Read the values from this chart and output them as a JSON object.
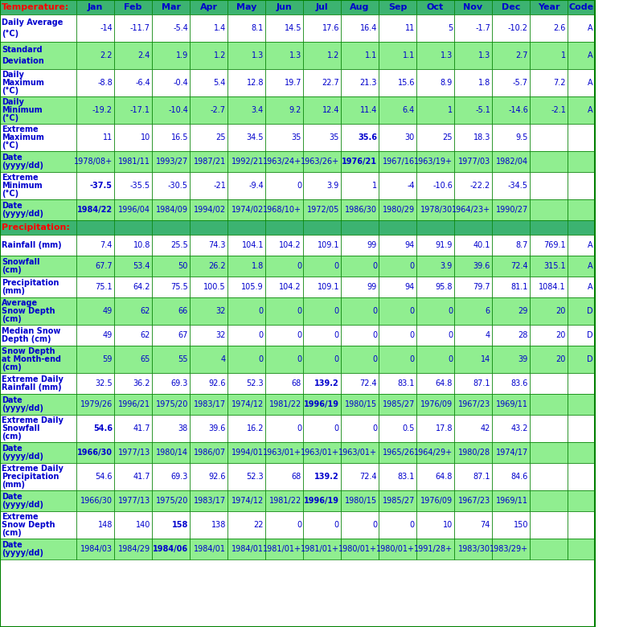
{
  "header_row": [
    "Temperature:",
    "Jan",
    "Feb",
    "Mar",
    "Apr",
    "May",
    "Jun",
    "Jul",
    "Aug",
    "Sep",
    "Oct",
    "Nov",
    "Dec",
    "Year",
    "Code"
  ],
  "rows": [
    {
      "label": "Daily Average\n(°C)",
      "values": [
        "-14",
        "-11.7",
        "-5.4",
        "1.4",
        "8.1",
        "14.5",
        "17.6",
        "16.4",
        "11",
        "5",
        "-1.7",
        "-10.2",
        "2.6",
        "A"
      ],
      "bold_cells": [],
      "row_bg": "white"
    },
    {
      "label": "Standard\nDeviation",
      "values": [
        "2.2",
        "2.4",
        "1.9",
        "1.2",
        "1.3",
        "1.3",
        "1.2",
        "1.1",
        "1.1",
        "1.3",
        "1.3",
        "2.7",
        "1",
        "A"
      ],
      "bold_cells": [],
      "row_bg": "light_green"
    },
    {
      "label": "Daily\nMaximum\n(°C)",
      "values": [
        "-8.8",
        "-6.4",
        "-0.4",
        "5.4",
        "12.8",
        "19.7",
        "22.7",
        "21.3",
        "15.6",
        "8.9",
        "1.8",
        "-5.7",
        "7.2",
        "A"
      ],
      "bold_cells": [],
      "row_bg": "white"
    },
    {
      "label": "Daily\nMinimum\n(°C)",
      "values": [
        "-19.2",
        "-17.1",
        "-10.4",
        "-2.7",
        "3.4",
        "9.2",
        "12.4",
        "11.4",
        "6.4",
        "1",
        "-5.1",
        "-14.6",
        "-2.1",
        "A"
      ],
      "bold_cells": [],
      "row_bg": "light_green"
    },
    {
      "label": "Extreme\nMaximum\n(°C)",
      "values": [
        "11",
        "10",
        "16.5",
        "25",
        "34.5",
        "35",
        "35",
        "35.6",
        "30",
        "25",
        "18.3",
        "9.5",
        "",
        ""
      ],
      "bold_cells": [
        7
      ],
      "row_bg": "white"
    },
    {
      "label": "Date\n(yyyy/dd)",
      "values": [
        "1978/08+",
        "1981/11",
        "1993/27",
        "1987/21",
        "1992/21",
        "1963/24+",
        "1963/26+",
        "1976/21",
        "1967/16",
        "1963/19+",
        "1977/03",
        "1982/04",
        "",
        ""
      ],
      "bold_cells": [
        7
      ],
      "row_bg": "light_green"
    },
    {
      "label": "Extreme\nMinimum\n(°C)",
      "values": [
        "-37.5",
        "-35.5",
        "-30.5",
        "-21",
        "-9.4",
        "0",
        "3.9",
        "1",
        "-4",
        "-10.6",
        "-22.2",
        "-34.5",
        "",
        ""
      ],
      "bold_cells": [
        0
      ],
      "row_bg": "white"
    },
    {
      "label": "Date\n(yyyy/dd)",
      "values": [
        "1984/22",
        "1996/04",
        "1984/09",
        "1994/02",
        "1974/02",
        "1968/10+",
        "1972/05",
        "1986/30",
        "1980/29",
        "1978/30",
        "1964/23+",
        "1990/27",
        "",
        ""
      ],
      "bold_cells": [
        0
      ],
      "row_bg": "light_green"
    },
    {
      "label": "Precipitation:",
      "values": [
        "",
        "",
        "",
        "",
        "",
        "",
        "",
        "",
        "",
        "",
        "",
        "",
        "",
        ""
      ],
      "bold_cells": [],
      "row_bg": "header",
      "is_section": true
    },
    {
      "label": "Rainfall (mm)",
      "values": [
        "7.4",
        "10.8",
        "25.5",
        "74.3",
        "104.1",
        "104.2",
        "109.1",
        "99",
        "94",
        "91.9",
        "40.1",
        "8.7",
        "769.1",
        "A"
      ],
      "bold_cells": [],
      "row_bg": "white"
    },
    {
      "label": "Snowfall\n(cm)",
      "values": [
        "67.7",
        "53.4",
        "50",
        "26.2",
        "1.8",
        "0",
        "0",
        "0",
        "0",
        "3.9",
        "39.6",
        "72.4",
        "315.1",
        "A"
      ],
      "bold_cells": [],
      "row_bg": "light_green"
    },
    {
      "label": "Precipitation\n(mm)",
      "values": [
        "75.1",
        "64.2",
        "75.5",
        "100.5",
        "105.9",
        "104.2",
        "109.1",
        "99",
        "94",
        "95.8",
        "79.7",
        "81.1",
        "1084.1",
        "A"
      ],
      "bold_cells": [],
      "row_bg": "white"
    },
    {
      "label": "Average\nSnow Depth\n(cm)",
      "values": [
        "49",
        "62",
        "66",
        "32",
        "0",
        "0",
        "0",
        "0",
        "0",
        "0",
        "6",
        "29",
        "20",
        "D"
      ],
      "bold_cells": [],
      "row_bg": "light_green"
    },
    {
      "label": "Median Snow\nDepth (cm)",
      "values": [
        "49",
        "62",
        "67",
        "32",
        "0",
        "0",
        "0",
        "0",
        "0",
        "0",
        "4",
        "28",
        "20",
        "D"
      ],
      "bold_cells": [],
      "row_bg": "white"
    },
    {
      "label": "Snow Depth\nat Month-end\n(cm)",
      "values": [
        "59",
        "65",
        "55",
        "4",
        "0",
        "0",
        "0",
        "0",
        "0",
        "0",
        "14",
        "39",
        "20",
        "D"
      ],
      "bold_cells": [],
      "row_bg": "light_green"
    },
    {
      "label": "Extreme Daily\nRainfall (mm)",
      "values": [
        "32.5",
        "36.2",
        "69.3",
        "92.6",
        "52.3",
        "68",
        "139.2",
        "72.4",
        "83.1",
        "64.8",
        "87.1",
        "83.6",
        "",
        ""
      ],
      "bold_cells": [
        6
      ],
      "row_bg": "white"
    },
    {
      "label": "Date\n(yyyy/dd)",
      "values": [
        "1979/26",
        "1996/21",
        "1975/20",
        "1983/17",
        "1974/12",
        "1981/22",
        "1996/19",
        "1980/15",
        "1985/27",
        "1976/09",
        "1967/23",
        "1969/11",
        "",
        ""
      ],
      "bold_cells": [
        6
      ],
      "row_bg": "light_green"
    },
    {
      "label": "Extreme Daily\nSnowfall\n(cm)",
      "values": [
        "54.6",
        "41.7",
        "38",
        "39.6",
        "16.2",
        "0",
        "0",
        "0",
        "0.5",
        "17.8",
        "42",
        "43.2",
        "",
        ""
      ],
      "bold_cells": [
        0
      ],
      "row_bg": "white"
    },
    {
      "label": "Date\n(yyyy/dd)",
      "values": [
        "1966/30",
        "1977/13",
        "1980/14",
        "1986/07",
        "1994/01",
        "1963/01+",
        "1963/01+",
        "1963/01+",
        "1965/26",
        "1964/29+",
        "1980/28",
        "1974/17",
        "",
        ""
      ],
      "bold_cells": [
        0
      ],
      "row_bg": "light_green"
    },
    {
      "label": "Extreme Daily\nPrecipitation\n(mm)",
      "values": [
        "54.6",
        "41.7",
        "69.3",
        "92.6",
        "52.3",
        "68",
        "139.2",
        "72.4",
        "83.1",
        "64.8",
        "87.1",
        "84.6",
        "",
        ""
      ],
      "bold_cells": [
        6
      ],
      "row_bg": "white"
    },
    {
      "label": "Date\n(yyyy/dd)",
      "values": [
        "1966/30",
        "1977/13",
        "1975/20",
        "1983/17",
        "1974/12",
        "1981/22",
        "1996/19",
        "1980/15",
        "1985/27",
        "1976/09",
        "1967/23",
        "1969/11",
        "",
        ""
      ],
      "bold_cells": [
        6
      ],
      "row_bg": "light_green"
    },
    {
      "label": "Extreme\nSnow Depth\n(cm)",
      "values": [
        "148",
        "140",
        "158",
        "138",
        "22",
        "0",
        "0",
        "0",
        "0",
        "10",
        "74",
        "150",
        "",
        ""
      ],
      "bold_cells": [
        2
      ],
      "row_bg": "white"
    },
    {
      "label": "Date\n(yyyy/dd)",
      "values": [
        "1984/03",
        "1984/29",
        "1984/06",
        "1984/01",
        "1984/01",
        "1981/01+",
        "1981/01+",
        "1980/01+",
        "1980/01+",
        "1991/28+",
        "1983/30",
        "1983/29+",
        "",
        ""
      ],
      "bold_cells": [
        2
      ],
      "row_bg": "light_green"
    }
  ],
  "colors": {
    "header_bg": "#008000",
    "header_text": "#0000FF",
    "header_label_text": "#FF0000",
    "light_green_bg": "#90EE90",
    "white_bg": "#FFFFFF",
    "section_bg": "#008000",
    "border": "#008000",
    "cell_text": "#0000FF",
    "bold_text": "#0000FF"
  }
}
